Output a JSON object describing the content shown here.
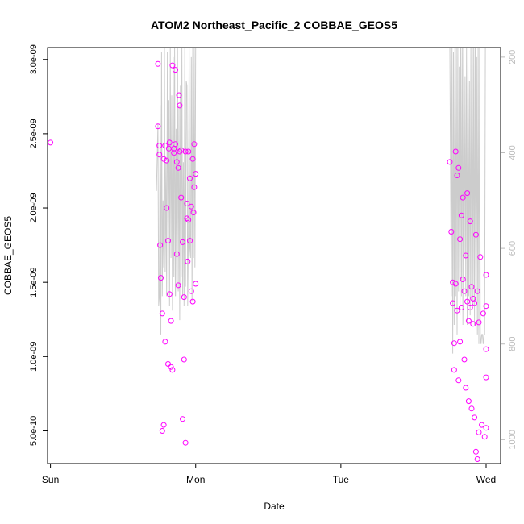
{
  "chart_data": {
    "type": "scatter",
    "title": "ATOM2 Northeast_Pacific_2 COBBAE_GEOS5",
    "xlabel": "Date",
    "ylabel": "COBBAE_GEOS5",
    "x_unit": "days since Sun 00:00",
    "xlim": [
      -0.02,
      3.1
    ],
    "ylim": [
      2.8e-10,
      3.08e-09
    ],
    "y2lim": [
      1050,
      180
    ],
    "xticks": [
      {
        "v": 0,
        "label": "Sun"
      },
      {
        "v": 1,
        "label": "Mon"
      },
      {
        "v": 2,
        "label": "Tue"
      },
      {
        "v": 3,
        "label": "Wed"
      }
    ],
    "yticks": [
      {
        "v": 5e-10,
        "label": "5.0e-10"
      },
      {
        "v": 1e-09,
        "label": "1.0e-09"
      },
      {
        "v": 1.5e-09,
        "label": "1.5e-09"
      },
      {
        "v": 2e-09,
        "label": "2.0e-09"
      },
      {
        "v": 2.5e-09,
        "label": "2.5e-09"
      },
      {
        "v": 3e-09,
        "label": "3.0e-09"
      }
    ],
    "y2ticks": [
      200,
      400,
      600,
      800,
      1000
    ],
    "colors": {
      "points": "#ff00ff",
      "pressure_line": "#cccccc",
      "axis": "#000000",
      "right_axis": "#bbbbbb"
    },
    "series": [
      {
        "kind": "points",
        "x": [
          0.0,
          0.74,
          0.74,
          0.75,
          0.75,
          0.755,
          0.76,
          0.77,
          0.77,
          0.78,
          0.78,
          0.79,
          0.79,
          0.8,
          0.8,
          0.81,
          0.81,
          0.815,
          0.82,
          0.82,
          0.83,
          0.83,
          0.84,
          0.84,
          0.85,
          0.85,
          0.86,
          0.86,
          0.87,
          0.87,
          0.88,
          0.88,
          0.885,
          0.89,
          0.89,
          0.9,
          0.9,
          0.91,
          0.91,
          0.92,
          0.92,
          0.93,
          0.93,
          0.94,
          0.94,
          0.945,
          0.95,
          0.95,
          0.96,
          0.96,
          0.97,
          0.97,
          0.98,
          0.98,
          0.985,
          0.99,
          0.99,
          1.0,
          1.0,
          2.75,
          2.76,
          2.77,
          2.77,
          2.78,
          2.78,
          2.79,
          2.79,
          2.8,
          2.8,
          2.81,
          2.81,
          2.82,
          2.82,
          2.83,
          2.83,
          2.84,
          2.84,
          2.85,
          2.85,
          2.86,
          2.86,
          2.87,
          2.87,
          2.88,
          2.88,
          2.89,
          2.89,
          2.9,
          2.9,
          2.91,
          2.91,
          2.92,
          2.92,
          2.93,
          2.93,
          2.94,
          2.94,
          2.95,
          2.95,
          2.96,
          2.97,
          2.98,
          2.99,
          3.0,
          3.0,
          3.0,
          3.0,
          3.0
        ],
        "y": [
          2.44e-09,
          2.97e-09,
          2.55e-09,
          2.42e-09,
          2.36e-09,
          1.75e-09,
          1.53e-09,
          1.29e-09,
          5e-10,
          2.33e-09,
          5.4e-10,
          2.42e-09,
          1.1e-09,
          2.32e-09,
          2e-09,
          9.5e-10,
          1.78e-09,
          2.4e-09,
          2.44e-09,
          1.42e-09,
          9.3e-10,
          1.24e-09,
          2.96e-09,
          9.1e-10,
          2.4e-09,
          2.37e-09,
          2.93e-09,
          2.43e-09,
          2.31e-09,
          1.69e-09,
          2.27e-09,
          1.48e-09,
          2.76e-09,
          2.69e-09,
          2.38e-09,
          2.39e-09,
          2.07e-09,
          1.77e-09,
          5.8e-10,
          9.8e-10,
          1.4e-09,
          2.38e-09,
          4.2e-10,
          2.03e-09,
          1.93e-09,
          1.64e-09,
          2.38e-09,
          1.92e-09,
          2.2e-09,
          1.78e-09,
          2.01e-09,
          1.44e-09,
          2.33e-09,
          1.37e-09,
          1.97e-09,
          2.14e-09,
          2.43e-09,
          2.23e-09,
          1.49e-09,
          2.31e-09,
          1.84e-09,
          1.5e-09,
          1.36e-09,
          1.09e-09,
          9.1e-10,
          2.38e-09,
          1.49e-09,
          2.22e-09,
          1.31e-09,
          8.4e-10,
          2.27e-09,
          1.79e-09,
          1.1e-09,
          1.95e-09,
          1.33e-09,
          2.07e-09,
          1.52e-09,
          1.44e-09,
          9.8e-10,
          1.68e-09,
          7.9e-10,
          2.1e-09,
          1.37e-09,
          1.24e-09,
          7e-10,
          1.91e-09,
          1.33e-09,
          1.47e-09,
          6.5e-10,
          1.39e-09,
          1.22e-09,
          1.36e-09,
          5.9e-10,
          1.82e-09,
          3.6e-10,
          1.44e-09,
          3.1e-10,
          1.23e-09,
          4.9e-10,
          1.67e-09,
          5.4e-10,
          1.29e-09,
          4.6e-10,
          1.05e-09,
          1.55e-09,
          1.34e-09,
          8.6e-10,
          5.2e-10
        ]
      },
      {
        "kind": "line",
        "axis": "right",
        "x": [
          0.73,
          0.74,
          0.745,
          0.75,
          0.755,
          0.76,
          0.765,
          0.77,
          0.775,
          0.78,
          0.785,
          0.79,
          0.795,
          0.8,
          0.805,
          0.81,
          0.815,
          0.82,
          0.825,
          0.83,
          0.835,
          0.84,
          0.845,
          0.85,
          0.855,
          0.86,
          0.865,
          0.87,
          0.875,
          0.88,
          0.885,
          0.89,
          0.895,
          0.9,
          0.905,
          0.91,
          0.915,
          0.92,
          0.925,
          0.93,
          0.935,
          0.94,
          0.945,
          0.95,
          0.955,
          0.96,
          0.965,
          0.97,
          0.975,
          0.98,
          0.985,
          0.99,
          0.995,
          1.0,
          2.66,
          2.72,
          2.75,
          2.76,
          2.765,
          2.77,
          2.775,
          2.78,
          2.785,
          2.79,
          2.795,
          2.8,
          2.805,
          2.81,
          2.815,
          2.82,
          2.825,
          2.83,
          2.835,
          2.84,
          2.845,
          2.85,
          2.855,
          2.86,
          2.865,
          2.87,
          2.875,
          2.88,
          2.885,
          2.89,
          2.895,
          2.9,
          2.905,
          2.91,
          2.915,
          2.92,
          2.925,
          2.93,
          2.935,
          2.94,
          2.945,
          2.95,
          2.955,
          2.96,
          2.965,
          2.97,
          2.975,
          2.98,
          2.985,
          2.99,
          2.995,
          3.0
        ],
        "y": [
          480,
          340,
          720,
          700,
          300,
          780,
          190,
          700,
          500,
          640,
          170,
          650,
          420,
          700,
          190,
          560,
          290,
          720,
          170,
          620,
          280,
          730,
          200,
          660,
          180,
          700,
          350,
          700,
          180,
          690,
          300,
          750,
          260,
          660,
          180,
          700,
          420,
          720,
          180,
          680,
          250,
          260,
          720,
          560,
          180,
          600,
          620,
          200,
          710,
          180,
          620,
          180,
          640,
          180,
          180,
          180,
          180,
          700,
          180,
          820,
          190,
          760,
          180,
          700,
          180,
          780,
          180,
          690,
          220,
          740,
          180,
          700,
          180,
          760,
          180,
          620,
          240,
          700,
          180,
          760,
          200,
          700,
          250,
          740,
          180,
          700,
          180,
          720,
          180,
          760,
          180,
          700,
          200,
          780,
          180,
          800,
          180,
          780,
          800,
          780,
          780,
          800,
          780,
          780,
          180,
          180
        ]
      }
    ]
  }
}
